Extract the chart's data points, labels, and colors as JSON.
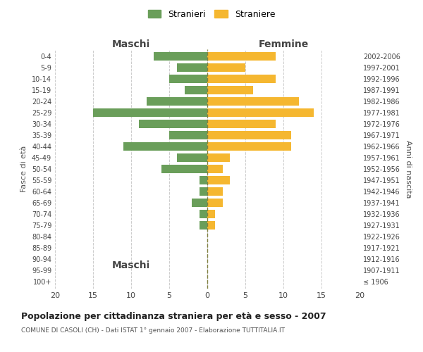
{
  "age_groups": [
    "100+",
    "95-99",
    "90-94",
    "85-89",
    "80-84",
    "75-79",
    "70-74",
    "65-69",
    "60-64",
    "55-59",
    "50-54",
    "45-49",
    "40-44",
    "35-39",
    "30-34",
    "25-29",
    "20-24",
    "15-19",
    "10-14",
    "5-9",
    "0-4"
  ],
  "birth_years": [
    "≤ 1906",
    "1907-1911",
    "1912-1916",
    "1917-1921",
    "1922-1926",
    "1927-1931",
    "1932-1936",
    "1937-1941",
    "1942-1946",
    "1947-1951",
    "1952-1956",
    "1957-1961",
    "1962-1966",
    "1967-1971",
    "1972-1976",
    "1977-1981",
    "1982-1986",
    "1987-1991",
    "1992-1996",
    "1997-2001",
    "2002-2006"
  ],
  "males": [
    0,
    0,
    0,
    0,
    0,
    1,
    1,
    2,
    1,
    1,
    6,
    4,
    11,
    5,
    9,
    15,
    8,
    3,
    5,
    4,
    7
  ],
  "females": [
    0,
    0,
    0,
    0,
    0,
    1,
    1,
    2,
    2,
    3,
    2,
    3,
    11,
    11,
    9,
    14,
    12,
    6,
    9,
    5,
    9
  ],
  "male_color": "#6a9e5a",
  "female_color": "#f5b730",
  "background_color": "#ffffff",
  "grid_color": "#cccccc",
  "title": "Popolazione per cittadinanza straniera per età e sesso - 2007",
  "subtitle": "COMUNE DI CASOLI (CH) - Dati ISTAT 1° gennaio 2007 - Elaborazione TUTTITALIA.IT",
  "xlabel_left": "Maschi",
  "xlabel_right": "Femmine",
  "ylabel_left": "Fasce di età",
  "ylabel_right": "Anni di nascita",
  "legend_male": "Stranieri",
  "legend_female": "Straniere",
  "xlim": 20,
  "dashed_line_color": "#808040"
}
